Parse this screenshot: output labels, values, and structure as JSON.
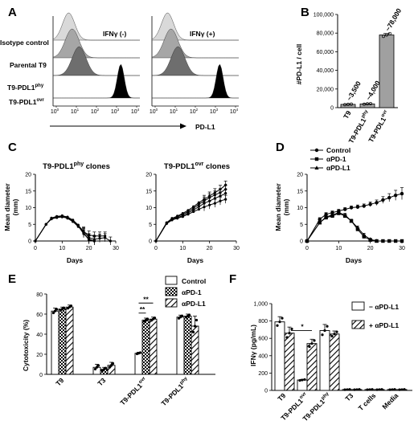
{
  "panels": {
    "A": {
      "label": "A",
      "row_labels": [
        "Isotype control",
        "Parental T9",
        "T9-PDL1",
        "T9-PDL1"
      ],
      "row_label_sup": [
        "",
        "",
        "phy",
        "ovr"
      ],
      "plot_titles": [
        "IFNγ (-)",
        "IFNγ (+)"
      ],
      "xticks": [
        "10",
        "10",
        "10",
        "10",
        "10"
      ],
      "xtick_exps": [
        "0",
        "1",
        "2",
        "3",
        "4"
      ],
      "xlabel": "PD-L1",
      "hist_colors": [
        "#d9d9d9",
        "#a6a6a6",
        "#6e6e6e",
        "#000000"
      ]
    },
    "B": {
      "label": "B",
      "ylabel": "#PD-L1 / cell",
      "yticks": [
        "0",
        "20,000",
        "40,000",
        "60,000",
        "80,000",
        "100,000"
      ],
      "ylim": [
        0,
        100000
      ],
      "categories": [
        "T9",
        "T9-PDL1",
        "T9-PDL1"
      ],
      "category_sup": [
        "",
        "phy",
        "ovr"
      ],
      "values": [
        3500,
        4000,
        78000
      ],
      "annotations": [
        "~3,500",
        "~4,000",
        "~78,000"
      ],
      "points": [
        [
          3200,
          3600,
          3800
        ],
        [
          3700,
          4100,
          4300
        ],
        [
          76500,
          78000,
          79500
        ]
      ]
    },
    "C": {
      "label": "C",
      "ylabel": "Mean diameter (mm)",
      "ylabel_lines": [
        "Mean diameter",
        "(mm)"
      ],
      "xlabel": "Days",
      "yticks": [
        "0",
        "5",
        "10",
        "15",
        "20"
      ],
      "ylim": [
        0,
        20
      ],
      "plots": [
        {
          "title": "T9-PDL1",
          "title_sup": "phy",
          "title_suffix": " clones",
          "xticks": [
            "0",
            "10",
            "20",
            "30"
          ],
          "xlim": [
            0,
            30
          ],
          "series": [
            {
              "x": [
                0,
                4,
                6,
                8,
                10,
                12,
                14,
                16,
                18,
                20,
                22
              ],
              "y": [
                0,
                5,
                6.8,
                7.3,
                7.6,
                7.2,
                6.3,
                4.8,
                2.5,
                0.3,
                0
              ]
            },
            {
              "x": [
                0,
                4,
                6,
                8,
                10,
                12,
                14,
                16,
                18,
                20,
                22,
                24,
                26
              ],
              "y": [
                0,
                5,
                6.7,
                7.2,
                7.3,
                6.8,
                5.8,
                4.3,
                2.8,
                1.8,
                1.5,
                1.5,
                1.5
              ]
            },
            {
              "x": [
                0,
                4,
                6,
                8,
                10,
                12,
                14,
                16,
                18,
                20,
                22
              ],
              "y": [
                0,
                5,
                6.6,
                7.0,
                7.2,
                6.9,
                6.0,
                4.5,
                2.2,
                0.5,
                0
              ]
            },
            {
              "x": [
                0,
                4,
                6,
                8,
                10,
                12,
                14,
                16,
                18,
                20,
                22,
                24,
                26,
                28
              ],
              "y": [
                0,
                5,
                6.9,
                7.4,
                7.5,
                7.0,
                6.0,
                4.6,
                3.0,
                1.0,
                0.5,
                0.8,
                1.0,
                0
              ]
            }
          ]
        },
        {
          "title": "T9-PDL1",
          "title_sup": "ovr",
          "title_suffix": " clones",
          "xticks": [
            "0",
            "10",
            "20",
            "30"
          ],
          "xlim": [
            0,
            30
          ],
          "series": [
            {
              "x": [
                0,
                4,
                6,
                8,
                10,
                12,
                14,
                16,
                18,
                20,
                22,
                24,
                26
              ],
              "y": [
                0,
                5.5,
                6.8,
                7.5,
                8.3,
                9.2,
                10.3,
                11.5,
                12.5,
                13.5,
                14.5,
                15.5,
                16.8
              ]
            },
            {
              "x": [
                0,
                4,
                6,
                8,
                10,
                12,
                14,
                16,
                18,
                20,
                22,
                24,
                26
              ],
              "y": [
                0,
                5.5,
                6.7,
                7.3,
                8.0,
                8.8,
                9.8,
                11.0,
                12.0,
                13.0,
                13.8,
                14.5,
                15.5
              ]
            },
            {
              "x": [
                0,
                4,
                6,
                8,
                10,
                12,
                14,
                16,
                18,
                20,
                22,
                24,
                26
              ],
              "y": [
                0,
                5.3,
                6.5,
                7.0,
                7.6,
                8.4,
                9.3,
                10.3,
                11.3,
                12.0,
                12.8,
                13.5,
                14.3
              ]
            },
            {
              "x": [
                0,
                4,
                6,
                8,
                10,
                12,
                14,
                16,
                18,
                20,
                22,
                24,
                26
              ],
              "y": [
                0,
                5.2,
                6.3,
                6.8,
                7.3,
                8.0,
                8.8,
                9.5,
                10.2,
                10.8,
                11.3,
                12.0,
                12.5
              ]
            }
          ]
        }
      ]
    },
    "D": {
      "label": "D",
      "type": "line",
      "ylabel": "Mean diameter (mm)",
      "ylabel_lines": [
        "Mean diameter",
        "(mm)"
      ],
      "xlabel": "Days",
      "xticks": [
        "0",
        "10",
        "20",
        "30"
      ],
      "yticks": [
        "0",
        "5",
        "10",
        "15",
        "20"
      ],
      "xlim": [
        0,
        30
      ],
      "ylim": [
        0,
        20
      ],
      "series": [
        {
          "name": "Control",
          "marker": "circle",
          "x": [
            0,
            4,
            6,
            8,
            10,
            12,
            14,
            16,
            18,
            20,
            22,
            24,
            26,
            28,
            30
          ],
          "y": [
            0,
            6.5,
            8.0,
            8.5,
            9.0,
            9.5,
            10.0,
            10.2,
            10.5,
            11.0,
            11.5,
            12.3,
            13.0,
            13.7,
            14.2
          ],
          "err": [
            0,
            0.5,
            0.5,
            0.5,
            0.5,
            0.5,
            0.5,
            0.6,
            0.6,
            0.7,
            0.8,
            1.0,
            1.2,
            1.5,
            1.8
          ]
        },
        {
          "name": "αPD-1",
          "marker": "square",
          "x": [
            0,
            4,
            6,
            8,
            10,
            12,
            14,
            16,
            18,
            20,
            22,
            24,
            26,
            28,
            30
          ],
          "y": [
            0,
            5.5,
            7.0,
            7.5,
            8.3,
            7.5,
            6.0,
            3.5,
            1.3,
            0.3,
            0,
            0,
            0,
            0,
            0
          ],
          "err": [
            0,
            0.5,
            0.5,
            0.5,
            0.5,
            0.5,
            0.5,
            0.5,
            0.5,
            0.3,
            0,
            0,
            0,
            0,
            0
          ]
        },
        {
          "name": "αPD-L1",
          "marker": "triangle",
          "x": [
            0,
            4,
            6,
            8,
            10,
            12,
            14,
            16,
            18,
            20,
            22
          ],
          "y": [
            0,
            5.5,
            7.2,
            7.8,
            8.5,
            7.8,
            6.0,
            4.0,
            1.8,
            0.5,
            0
          ],
          "err": [
            0,
            0.5,
            0.5,
            0.5,
            0.5,
            0.5,
            0.5,
            0.5,
            0.5,
            0.3,
            0
          ]
        }
      ]
    },
    "E": {
      "label": "E",
      "type": "bar",
      "ylabel": "Cytotoxicity (%)",
      "yticks": [
        "0",
        "20",
        "40",
        "60",
        "80"
      ],
      "ylim": [
        0,
        80
      ],
      "categories": [
        "T9",
        "T3",
        "T9-PDL1",
        "T9-PDL1"
      ],
      "category_sup": [
        "",
        "",
        "ovr",
        "phy"
      ],
      "series": [
        {
          "name": "Control",
          "pattern": "white",
          "values": [
            63,
            7,
            21,
            57
          ],
          "err": [
            3,
            3,
            1,
            2
          ]
        },
        {
          "name": "αPD-1",
          "pattern": "checker",
          "values": [
            65,
            5,
            54,
            58
          ],
          "err": [
            2,
            2,
            2,
            2
          ]
        },
        {
          "name": "αPD-L1",
          "pattern": "hatch",
          "values": [
            67,
            9,
            55,
            48
          ],
          "err": [
            2,
            3,
            2,
            10
          ]
        }
      ],
      "significance": [
        "**",
        "**"
      ]
    },
    "F": {
      "label": "F",
      "type": "bar",
      "ylabel": "IFNγ (pg/mL)",
      "yticks": [
        "0",
        "200",
        "400",
        "600",
        "800",
        "1,000"
      ],
      "ylim": [
        0,
        1000
      ],
      "categories": [
        "T9",
        "T9-PDL1",
        "T9-PDL1",
        "T3",
        "T cells",
        "Media"
      ],
      "category_sup": [
        "",
        "ovr",
        "phy",
        "",
        "",
        ""
      ],
      "series": [
        {
          "name": "− αPD-L1",
          "pattern": "white",
          "values": [
            790,
            120,
            690,
            10,
            10,
            10
          ],
          "err": [
            60,
            8,
            70,
            3,
            3,
            3
          ]
        },
        {
          "name": "+ αPD-L1",
          "pattern": "hatch",
          "values": [
            660,
            540,
            650,
            10,
            10,
            10
          ],
          "err": [
            70,
            50,
            35,
            3,
            3,
            3
          ]
        }
      ],
      "significance": [
        "*"
      ]
    }
  }
}
